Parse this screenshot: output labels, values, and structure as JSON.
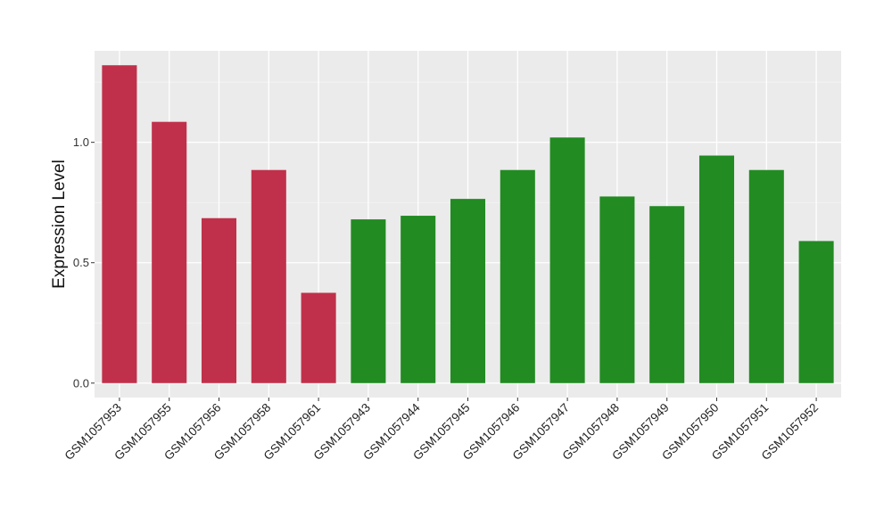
{
  "chart_data": {
    "type": "bar",
    "ylabel": "Expression Level",
    "xlabel": "",
    "ylim": [
      -0.06,
      1.38
    ],
    "yticks": [
      0.0,
      0.5,
      1.0
    ],
    "ytick_labels": [
      "0.0",
      "0.5",
      "1.0"
    ],
    "grid": true,
    "background": "#EBEBEB",
    "categories": [
      "GSM1057953",
      "GSM1057955",
      "GSM1057956",
      "GSM1057958",
      "GSM1057961",
      "GSM1057943",
      "GSM1057944",
      "GSM1057945",
      "GSM1057946",
      "GSM1057947",
      "GSM1057948",
      "GSM1057949",
      "GSM1057950",
      "GSM1057951",
      "GSM1057952"
    ],
    "values": [
      1.32,
      1.085,
      0.685,
      0.885,
      0.375,
      0.68,
      0.695,
      0.765,
      0.885,
      1.02,
      0.775,
      0.735,
      0.945,
      0.885,
      0.59
    ],
    "colors": [
      "#C0304A",
      "#C0304A",
      "#C0304A",
      "#C0304A",
      "#C0304A",
      "#228B22",
      "#228B22",
      "#228B22",
      "#228B22",
      "#228B22",
      "#228B22",
      "#228B22",
      "#228B22",
      "#228B22",
      "#228B22"
    ]
  }
}
